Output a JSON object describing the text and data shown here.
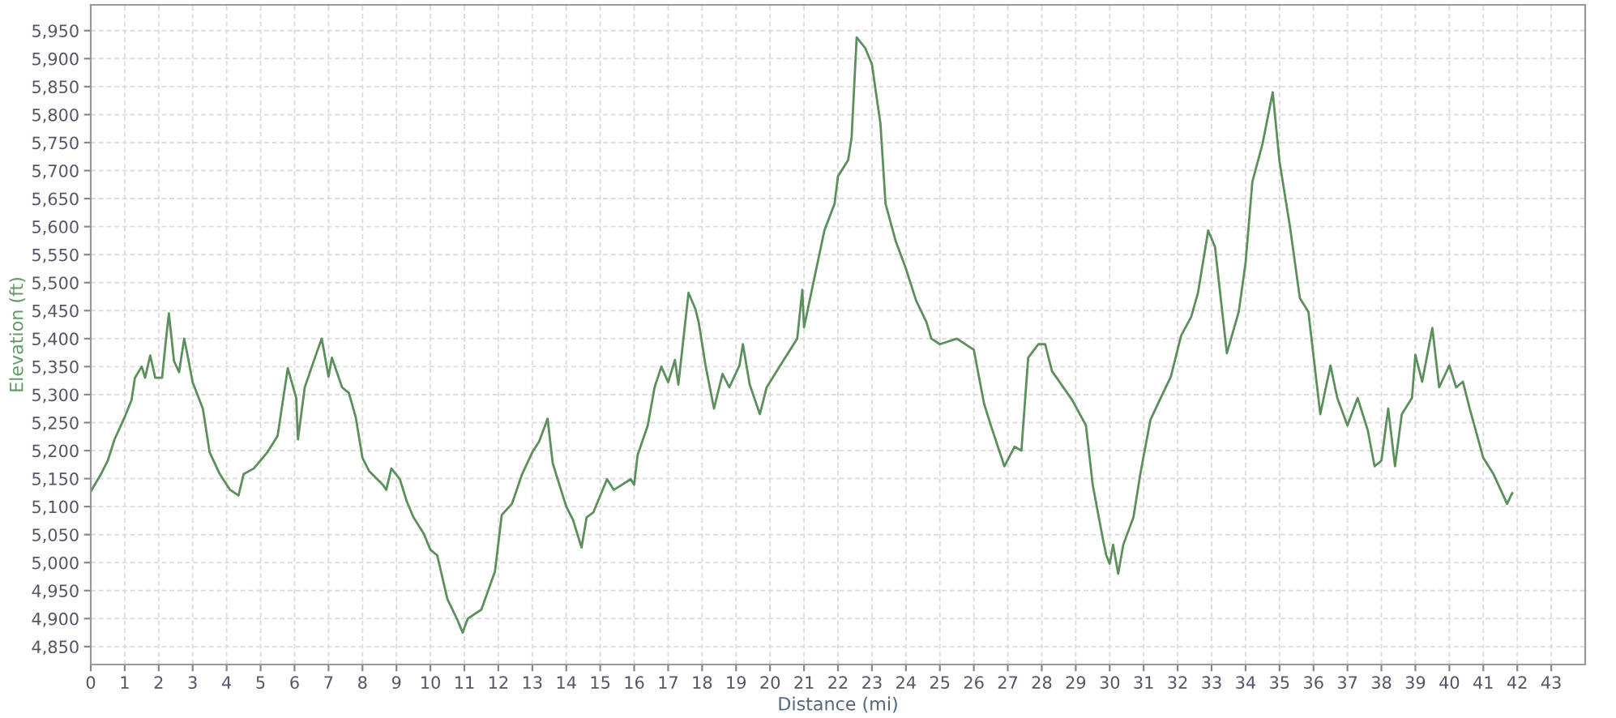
{
  "chart_data": {
    "type": "line",
    "xlabel": "Distance (mi)",
    "ylabel": "Elevation (ft)",
    "xlim": [
      0,
      44
    ],
    "ylim": [
      4818,
      5996
    ],
    "xticks": [
      0,
      1,
      2,
      3,
      4,
      5,
      6,
      7,
      8,
      9,
      10,
      11,
      12,
      13,
      14,
      15,
      16,
      17,
      18,
      19,
      20,
      21,
      22,
      23,
      24,
      25,
      26,
      27,
      28,
      29,
      30,
      31,
      32,
      33,
      34,
      35,
      36,
      37,
      38,
      39,
      40,
      41,
      42,
      43
    ],
    "yticks": [
      {
        "value": 4850,
        "label": "4,850"
      },
      {
        "value": 4900,
        "label": "4,900"
      },
      {
        "value": 4950,
        "label": "4,950"
      },
      {
        "value": 5000,
        "label": "5,000"
      },
      {
        "value": 5050,
        "label": "5,050"
      },
      {
        "value": 5100,
        "label": "5,100"
      },
      {
        "value": 5150,
        "label": "5,150"
      },
      {
        "value": 5200,
        "label": "5,200"
      },
      {
        "value": 5250,
        "label": "5,250"
      },
      {
        "value": 5300,
        "label": "5,300"
      },
      {
        "value": 5350,
        "label": "5,350"
      },
      {
        "value": 5400,
        "label": "5,400"
      },
      {
        "value": 5450,
        "label": "5,450"
      },
      {
        "value": 5500,
        "label": "5,500"
      },
      {
        "value": 5550,
        "label": "5,550"
      },
      {
        "value": 5600,
        "label": "5,600"
      },
      {
        "value": 5650,
        "label": "5,650"
      },
      {
        "value": 5700,
        "label": "5,700"
      },
      {
        "value": 5750,
        "label": "5,750"
      },
      {
        "value": 5800,
        "label": "5,800"
      },
      {
        "value": 5850,
        "label": "5,850"
      },
      {
        "value": 5900,
        "label": "5,900"
      },
      {
        "value": 5950,
        "label": "5,950"
      }
    ],
    "grid": true,
    "marker": "none",
    "line_style": "solid",
    "series": [
      {
        "color": "#5b8f5b",
        "x": [
          0,
          0.3,
          0.5,
          0.7,
          1.0,
          1.2,
          1.3,
          1.5,
          1.6,
          1.75,
          1.9,
          2.1,
          2.2,
          2.3,
          2.45,
          2.6,
          2.75,
          2.85,
          3.0,
          3.3,
          3.5,
          3.8,
          4.1,
          4.35,
          4.5,
          4.8,
          5.2,
          5.5,
          5.8,
          6.05,
          6.1,
          6.3,
          6.6,
          6.8,
          7.0,
          7.1,
          7.4,
          7.6,
          7.8,
          8.0,
          8.2,
          8.6,
          8.7,
          8.85,
          9.1,
          9.3,
          9.5,
          9.8,
          10.0,
          10.2,
          10.5,
          10.8,
          10.95,
          11.1,
          11.5,
          11.9,
          12.1,
          12.4,
          12.7,
          13.0,
          13.2,
          13.45,
          13.6,
          13.7,
          14.0,
          14.2,
          14.45,
          14.6,
          14.8,
          15.2,
          15.4,
          15.9,
          16.0,
          16.1,
          16.4,
          16.6,
          16.8,
          17.0,
          17.2,
          17.3,
          17.6,
          17.8,
          17.9,
          18.1,
          18.35,
          18.6,
          18.8,
          19.1,
          19.2,
          19.4,
          19.7,
          19.9,
          20.3,
          20.8,
          20.95,
          21.0,
          21.3,
          21.6,
          21.9,
          22.0,
          22.3,
          22.4,
          22.55,
          22.8,
          23.0,
          23.1,
          23.25,
          23.4,
          23.7,
          24.0,
          24.3,
          24.6,
          24.75,
          25.0,
          25.5,
          26.0,
          26.3,
          26.5,
          26.9,
          27.2,
          27.4,
          27.6,
          27.9,
          28.1,
          28.3,
          28.9,
          29.3,
          29.5,
          29.8,
          29.9,
          30.0,
          30.1,
          30.25,
          30.4,
          30.7,
          30.9,
          31.2,
          31.5,
          31.8,
          32.1,
          32.4,
          32.6,
          32.9,
          33.1,
          33.45,
          33.8,
          34.0,
          34.2,
          34.5,
          34.8,
          35.0,
          35.3,
          35.6,
          35.85,
          36.2,
          36.5,
          36.7,
          37.0,
          37.3,
          37.6,
          37.8,
          38.0,
          38.2,
          38.4,
          38.6,
          38.9,
          39.0,
          39.2,
          39.5,
          39.7,
          40.0,
          40.2,
          40.4,
          40.6,
          41.0,
          41.3,
          41.7,
          41.85
        ],
        "values": [
          5127,
          5158,
          5182,
          5220,
          5260,
          5290,
          5330,
          5350,
          5330,
          5370,
          5330,
          5330,
          5390,
          5445,
          5360,
          5340,
          5400,
          5370,
          5322,
          5275,
          5197,
          5158,
          5130,
          5120,
          5158,
          5168,
          5197,
          5226,
          5347,
          5294,
          5220,
          5313,
          5366,
          5400,
          5332,
          5366,
          5313,
          5303,
          5260,
          5187,
          5163,
          5139,
          5130,
          5168,
          5149,
          5110,
          5081,
          5052,
          5023,
          5013,
          4935,
          4897,
          4875,
          4900,
          4916,
          4984,
          5085,
          5105,
          5158,
          5197,
          5216,
          5257,
          5178,
          5158,
          5100,
          5076,
          5027,
          5081,
          5090,
          5149,
          5130,
          5149,
          5139,
          5192,
          5245,
          5313,
          5350,
          5322,
          5362,
          5318,
          5482,
          5453,
          5429,
          5352,
          5275,
          5337,
          5313,
          5352,
          5390,
          5318,
          5265,
          5313,
          5352,
          5400,
          5487,
          5420,
          5507,
          5593,
          5641,
          5690,
          5719,
          5758,
          5938,
          5919,
          5890,
          5847,
          5784,
          5641,
          5574,
          5525,
          5468,
          5430,
          5400,
          5390,
          5400,
          5380,
          5284,
          5245,
          5172,
          5207,
          5200,
          5366,
          5390,
          5390,
          5342,
          5290,
          5245,
          5139,
          5042,
          5013,
          4998,
          5032,
          4980,
          5032,
          5081,
          5158,
          5255,
          5294,
          5332,
          5405,
          5439,
          5482,
          5593,
          5564,
          5374,
          5448,
          5535,
          5680,
          5748,
          5840,
          5716,
          5603,
          5472,
          5448,
          5265,
          5352,
          5294,
          5245,
          5294,
          5236,
          5172,
          5182,
          5275,
          5172,
          5265,
          5294,
          5371,
          5323,
          5419,
          5313,
          5352,
          5313,
          5323,
          5275,
          5187,
          5158,
          5105,
          5124
        ]
      }
    ]
  }
}
